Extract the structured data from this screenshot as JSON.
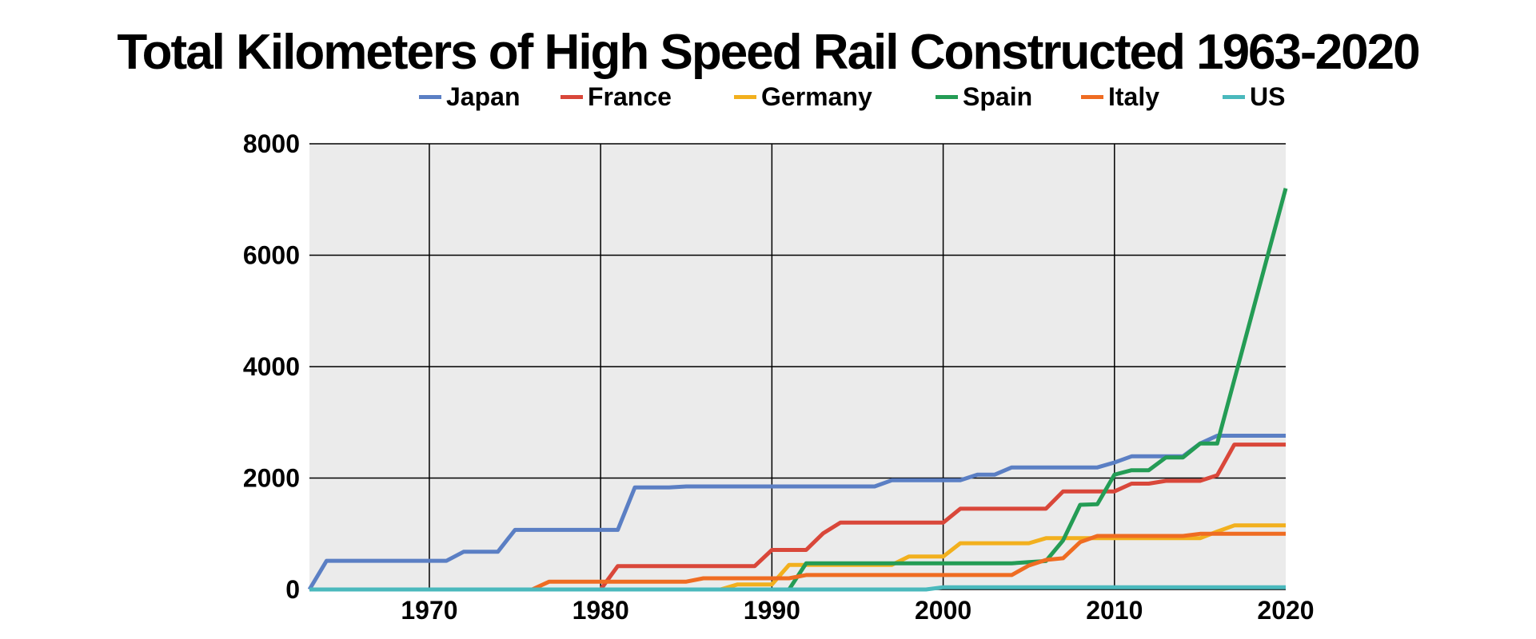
{
  "chart_data": {
    "type": "line",
    "title": "Total Kilometers of High Speed Rail Constructed 1963-2020",
    "xlabel": "",
    "ylabel": "",
    "xlim": [
      1963,
      2020
    ],
    "ylim": [
      0,
      8000
    ],
    "x_ticks": [
      1970,
      1980,
      1990,
      2000,
      2010,
      2020
    ],
    "y_ticks": [
      0,
      2000,
      4000,
      6000,
      8000
    ],
    "grid": true,
    "legend": "top",
    "series": [
      {
        "name": "Japan",
        "color": "#5b7fc4",
        "points": [
          [
            1963,
            0
          ],
          [
            1964,
            515
          ],
          [
            1971,
            515
          ],
          [
            1972,
            676
          ],
          [
            1974,
            676
          ],
          [
            1975,
            1069
          ],
          [
            1981,
            1069
          ],
          [
            1982,
            1832
          ],
          [
            1984,
            1832
          ],
          [
            1985,
            1850
          ],
          [
            1996,
            1850
          ],
          [
            1997,
            1960
          ],
          [
            2001,
            1960
          ],
          [
            2002,
            2060
          ],
          [
            2003,
            2060
          ],
          [
            2004,
            2190
          ],
          [
            2009,
            2190
          ],
          [
            2010,
            2280
          ],
          [
            2011,
            2390
          ],
          [
            2014,
            2390
          ],
          [
            2015,
            2620
          ],
          [
            2016,
            2760
          ],
          [
            2020,
            2760
          ]
        ]
      },
      {
        "name": "France",
        "color": "#d9473a",
        "points": [
          [
            1963,
            0
          ],
          [
            1980,
            0
          ],
          [
            1981,
            420
          ],
          [
            1989,
            420
          ],
          [
            1990,
            710
          ],
          [
            1992,
            710
          ],
          [
            1993,
            1010
          ],
          [
            1994,
            1200
          ],
          [
            2000,
            1200
          ],
          [
            2001,
            1450
          ],
          [
            2006,
            1450
          ],
          [
            2007,
            1760
          ],
          [
            2010,
            1760
          ],
          [
            2011,
            1900
          ],
          [
            2012,
            1900
          ],
          [
            2013,
            1950
          ],
          [
            2015,
            1950
          ],
          [
            2016,
            2050
          ],
          [
            2017,
            2600
          ],
          [
            2020,
            2600
          ]
        ]
      },
      {
        "name": "Germany",
        "color": "#f2b01e",
        "points": [
          [
            1963,
            0
          ],
          [
            1987,
            0
          ],
          [
            1988,
            90
          ],
          [
            1990,
            90
          ],
          [
            1991,
            440
          ],
          [
            1997,
            440
          ],
          [
            1998,
            590
          ],
          [
            2000,
            590
          ],
          [
            2001,
            830
          ],
          [
            2005,
            830
          ],
          [
            2006,
            920
          ],
          [
            2015,
            920
          ],
          [
            2016,
            1040
          ],
          [
            2017,
            1150
          ],
          [
            2020,
            1150
          ]
        ]
      },
      {
        "name": "Spain",
        "color": "#249c55",
        "points": [
          [
            1963,
            0
          ],
          [
            1991,
            0
          ],
          [
            1992,
            470
          ],
          [
            2004,
            470
          ],
          [
            2005,
            490
          ],
          [
            2006,
            510
          ],
          [
            2007,
            880
          ],
          [
            2008,
            1520
          ],
          [
            2009,
            1530
          ],
          [
            2010,
            2060
          ],
          [
            2011,
            2140
          ],
          [
            2012,
            2140
          ],
          [
            2013,
            2370
          ],
          [
            2014,
            2370
          ],
          [
            2015,
            2620
          ],
          [
            2016,
            2620
          ],
          [
            2020,
            7200
          ]
        ]
      },
      {
        "name": "Italy",
        "color": "#ef6c22",
        "points": [
          [
            1963,
            0
          ],
          [
            1976,
            0
          ],
          [
            1977,
            140
          ],
          [
            1985,
            140
          ],
          [
            1986,
            200
          ],
          [
            1991,
            200
          ],
          [
            1992,
            260
          ],
          [
            2004,
            260
          ],
          [
            2005,
            430
          ],
          [
            2006,
            530
          ],
          [
            2007,
            560
          ],
          [
            2008,
            850
          ],
          [
            2009,
            960
          ],
          [
            2014,
            960
          ],
          [
            2015,
            1000
          ],
          [
            2020,
            1000
          ]
        ]
      },
      {
        "name": "US",
        "color": "#4ab9bd",
        "points": [
          [
            1963,
            0
          ],
          [
            1999,
            0
          ],
          [
            2000,
            40
          ],
          [
            2020,
            40
          ]
        ]
      }
    ]
  }
}
